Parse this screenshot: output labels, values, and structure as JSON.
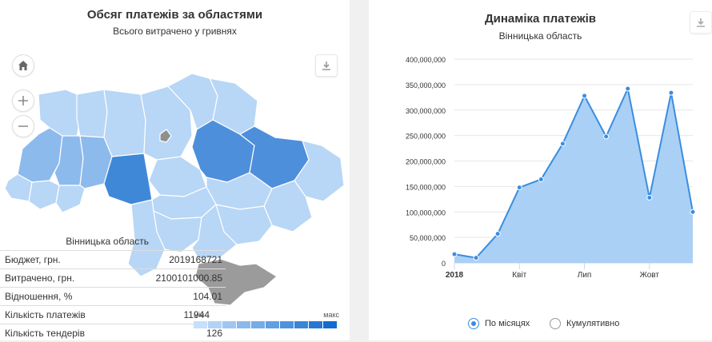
{
  "map_panel": {
    "title": "Обсяг платежів за областями",
    "subtitle": "Всього витрачено у гривнях",
    "buttons": {
      "home": "home-icon",
      "zoom_in": "zoom-in-icon",
      "zoom_out": "zoom-out-icon",
      "download": "download-icon"
    },
    "info": {
      "region": "Вінницька область",
      "rows": [
        {
          "label": "Бюджет, грн.",
          "value": "2019168721"
        },
        {
          "label": "Витрачено, грн.",
          "value": "2100101000.85"
        },
        {
          "label": "Відношення, %",
          "value": "104.01"
        },
        {
          "label": "Кількість платежів",
          "value": "11944"
        },
        {
          "label": "Кількість тендерів",
          "value": "126"
        }
      ]
    },
    "legend": {
      "min_label": "мін",
      "max_label": "макс",
      "colors": [
        "#c6e0fb",
        "#b2d3f6",
        "#9ec6f1",
        "#8ab9ec",
        "#76ace7",
        "#629fe2",
        "#4e92dd",
        "#3a85d8",
        "#2678d3",
        "#126bce"
      ]
    },
    "region_colors": {
      "light": "#b8d6f6",
      "medium": "#8dbaec",
      "dark": "#3f88d8",
      "deep": "#4d8fdb",
      "crimea": "#9b9b9b",
      "kyiv": "#8f8f8f",
      "border": "#ffffff"
    }
  },
  "chart_panel": {
    "title": "Динаміка платежів",
    "subtitle": "Вінницька область",
    "download": "download-icon",
    "options": [
      {
        "label": "По місяцях",
        "selected": true
      },
      {
        "label": "Кумулятивно",
        "selected": false
      }
    ]
  },
  "chart_data": {
    "type": "area",
    "x": [
      "2018-01",
      "2018-02",
      "2018-03",
      "2018-04",
      "2018-05",
      "2018-06",
      "2018-07",
      "2018-08",
      "2018-09",
      "2018-10",
      "2018-11",
      "2018-12"
    ],
    "x_tick_labels": [
      {
        "at": "2018-01",
        "label": "2018",
        "bold": true
      },
      {
        "at": "2018-04",
        "label": "Квіт"
      },
      {
        "at": "2018-07",
        "label": "Лип"
      },
      {
        "at": "2018-10",
        "label": "Жовт"
      }
    ],
    "values": [
      17000000,
      10000000,
      57000000,
      148000000,
      164000000,
      234000000,
      328000000,
      248000000,
      342000000,
      128000000,
      334000000,
      100000000
    ],
    "yticks": [
      "0",
      "50,000,000",
      "100,000,000",
      "150,000,000",
      "200,000,000",
      "250,000,000",
      "300,000,000",
      "350,000,000",
      "400,000,000"
    ],
    "ylim": [
      0,
      400000000
    ],
    "grid": true,
    "line_color": "#3a8de0",
    "fill_color": "#a6cdf4"
  }
}
